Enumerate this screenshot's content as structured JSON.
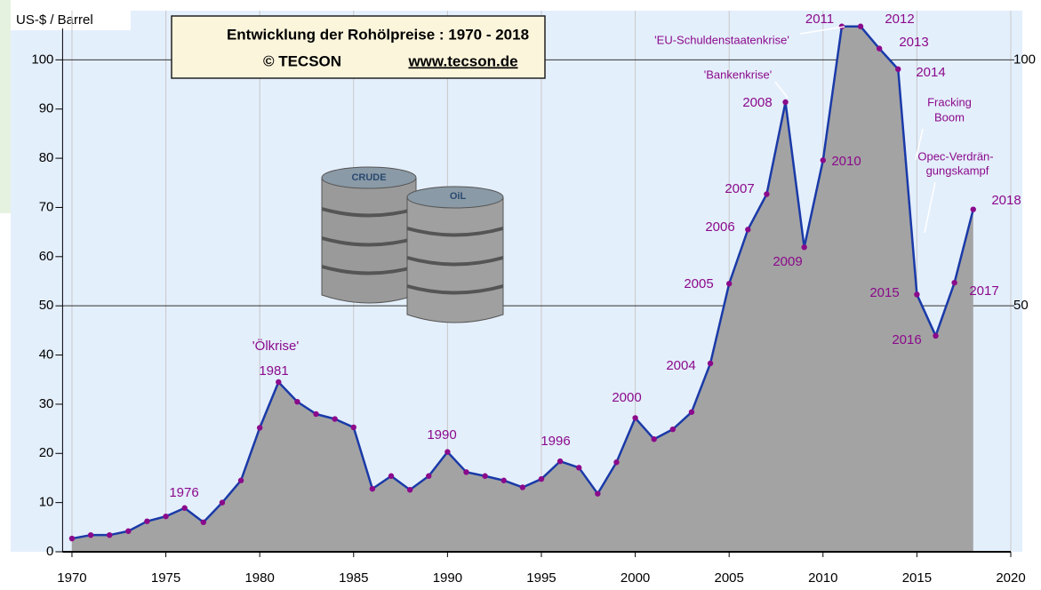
{
  "chart_data": {
    "type": "area",
    "title": "Entwicklung der Rohölpreise :  1970 - 2018",
    "subtitle": [
      "© TECSON",
      "www.tecson.de"
    ],
    "y_label": "US-$ / Barrel",
    "x": [
      1970,
      1971,
      1972,
      1973,
      1974,
      1975,
      1976,
      1977,
      1978,
      1979,
      1980,
      1981,
      1982,
      1983,
      1984,
      1985,
      1986,
      1987,
      1988,
      1989,
      1990,
      1991,
      1992,
      1993,
      1994,
      1995,
      1996,
      1997,
      1998,
      1999,
      2000,
      2001,
      2002,
      2003,
      2004,
      2005,
      2006,
      2007,
      2008,
      2009,
      2010,
      2011,
      2012,
      2013,
      2014,
      2015,
      2016,
      2017,
      2018
    ],
    "series": [
      {
        "color": "#1a3aa8",
        "area_color": "#a3a3a3",
        "marker_color": "#8b0a8b",
        "values": [
          2.7,
          3.4,
          3.4,
          4.2,
          6.2,
          7.2,
          8.9,
          6.0,
          10.0,
          14.5,
          25.2,
          34.5,
          30.5,
          28.0,
          27.0,
          25.3,
          12.8,
          15.4,
          12.6,
          15.4,
          20.3,
          16.2,
          15.4,
          14.5,
          13.1,
          14.8,
          18.4,
          17.1,
          11.8,
          18.2,
          27.2,
          22.9,
          24.9,
          28.4,
          38.3,
          54.5,
          65.5,
          72.7,
          91.4,
          61.9,
          79.6,
          106.8,
          106.8,
          102.3,
          98.1,
          52.3,
          43.9,
          54.7,
          69.6
        ]
      }
    ],
    "xlim": [
      1969.5,
      2020
    ],
    "xticks": [
      1970,
      1975,
      1980,
      1985,
      1990,
      1995,
      2000,
      2005,
      2010,
      2015,
      2020
    ],
    "ylim": [
      0,
      110
    ],
    "yticks": [
      0,
      10,
      20,
      30,
      40,
      50,
      60,
      70,
      80,
      90,
      100
    ],
    "y2lim": [
      0,
      110
    ],
    "y2ticks": [
      50,
      100
    ],
    "annotations": [
      "1976",
      "'Ölkrise'",
      "1981",
      "1990",
      "1996",
      "2000",
      "2004",
      "2005",
      "2006",
      "2007",
      "2008",
      "'Bankenkrise'",
      "2009",
      "2010",
      "2011",
      "2012",
      "'EU-Schuldenstaatenkrise'",
      "2013",
      "2014",
      "Fracking",
      "Boom",
      "Opec-Verdrän-",
      "gungskampf",
      "2015",
      "2016",
      "2017",
      "2018"
    ]
  }
}
